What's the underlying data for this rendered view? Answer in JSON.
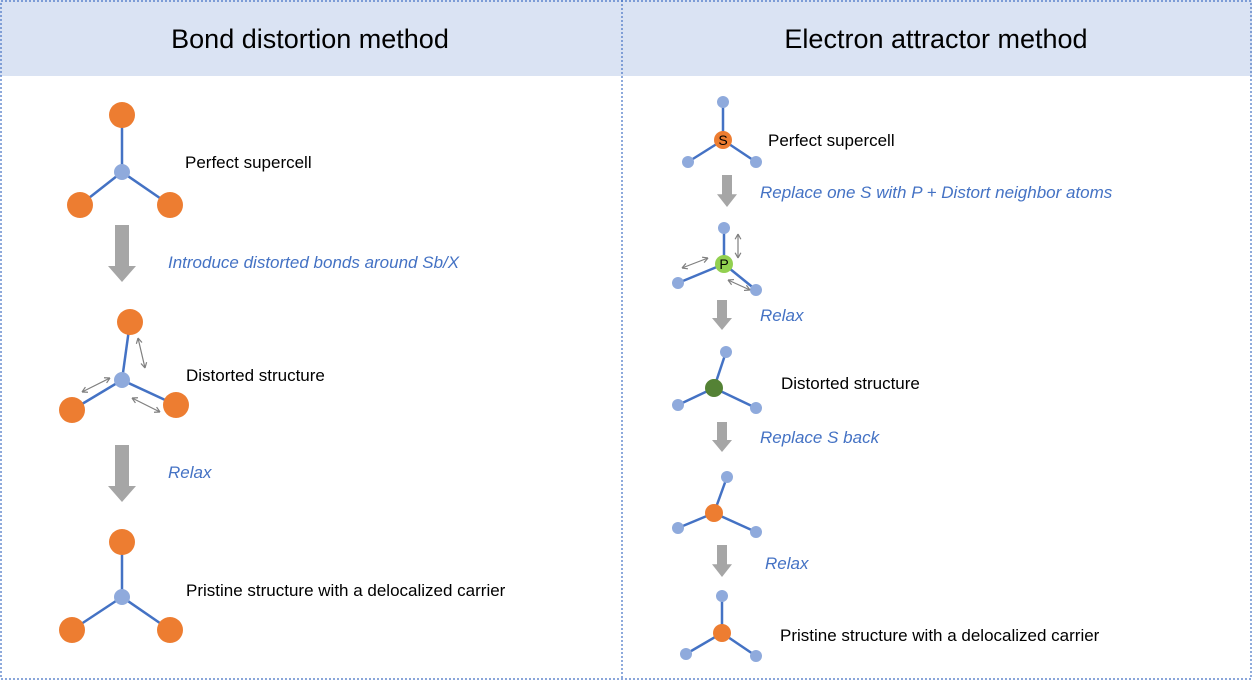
{
  "panels": [
    {
      "title": "Bond distortion method",
      "steps": [
        "Perfect supercell",
        "Distorted structure",
        "Pristine structure with a delocalized carrier"
      ],
      "transitions": [
        "Introduce distorted bonds around Sb/X",
        "Relax"
      ]
    },
    {
      "title": "Electron attractor method",
      "steps": [
        "Perfect supercell",
        "Distorted structure",
        "Pristine structure with a delocalized carrier"
      ],
      "transitions": [
        "Replace one S with P + Distort neighbor atoms",
        "Relax",
        "Replace S back",
        "Relax"
      ],
      "atom_labels": [
        "S",
        "P"
      ]
    }
  ]
}
